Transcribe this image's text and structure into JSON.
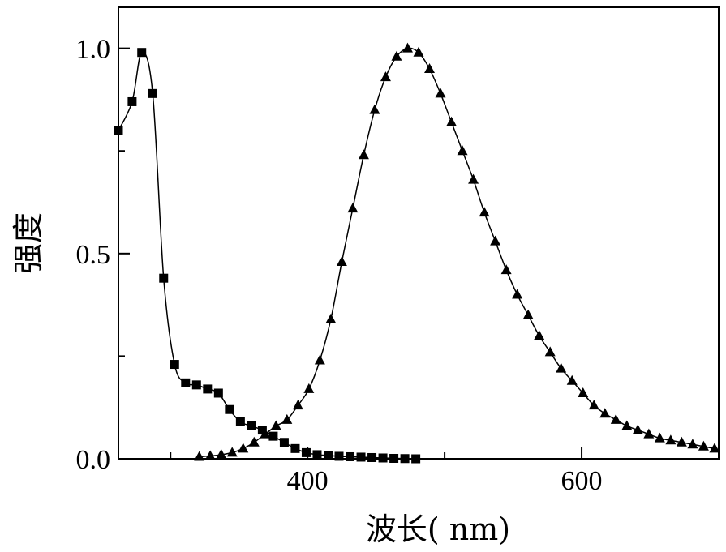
{
  "chart_data": {
    "type": "scatter",
    "title": "",
    "xlabel": "波长(  nm)",
    "ylabel": "强度",
    "xlim": [
      262,
      700
    ],
    "ylim": [
      0.0,
      1.1
    ],
    "x_ticks": [
      400,
      600
    ],
    "x_tick_labels": [
      "400",
      "600"
    ],
    "y_ticks": [
      0.0,
      0.5,
      1.0
    ],
    "y_tick_labels": [
      "0.0",
      "0.5",
      "1.0"
    ],
    "grid": false,
    "legend": "none",
    "series": [
      {
        "marker": "square",
        "color": "#000000",
        "x": [
          262,
          272,
          279,
          287,
          295,
          303,
          311,
          319,
          327,
          335,
          343,
          351,
          359,
          367,
          375,
          383,
          391,
          399,
          407,
          415,
          423,
          431,
          439,
          447,
          455,
          463,
          471,
          479
        ],
        "y": [
          0.8,
          0.87,
          0.99,
          0.89,
          0.44,
          0.23,
          0.185,
          0.18,
          0.17,
          0.16,
          0.12,
          0.09,
          0.08,
          0.07,
          0.055,
          0.04,
          0.025,
          0.015,
          0.01,
          0.008,
          0.006,
          0.005,
          0.004,
          0.003,
          0.002,
          0.001,
          0.0005,
          0.0
        ]
      },
      {
        "marker": "triangle",
        "color": "#000000",
        "x": [
          321,
          329,
          337,
          345,
          353,
          361,
          369,
          377,
          385,
          393,
          401,
          409,
          417,
          425,
          433,
          441,
          449,
          457,
          465,
          473,
          481,
          489,
          497,
          505,
          513,
          521,
          529,
          537,
          545,
          553,
          561,
          569,
          577,
          585,
          593,
          601,
          609,
          617,
          625,
          633,
          641,
          649,
          657,
          665,
          673,
          681,
          689,
          697
        ],
        "y": [
          0.005,
          0.007,
          0.01,
          0.015,
          0.025,
          0.04,
          0.06,
          0.08,
          0.095,
          0.13,
          0.17,
          0.24,
          0.34,
          0.48,
          0.61,
          0.74,
          0.85,
          0.93,
          0.98,
          1.0,
          0.99,
          0.95,
          0.89,
          0.82,
          0.75,
          0.68,
          0.6,
          0.53,
          0.46,
          0.4,
          0.35,
          0.3,
          0.26,
          0.22,
          0.19,
          0.16,
          0.13,
          0.11,
          0.095,
          0.08,
          0.07,
          0.06,
          0.05,
          0.045,
          0.04,
          0.035,
          0.03,
          0.025
        ]
      }
    ]
  }
}
